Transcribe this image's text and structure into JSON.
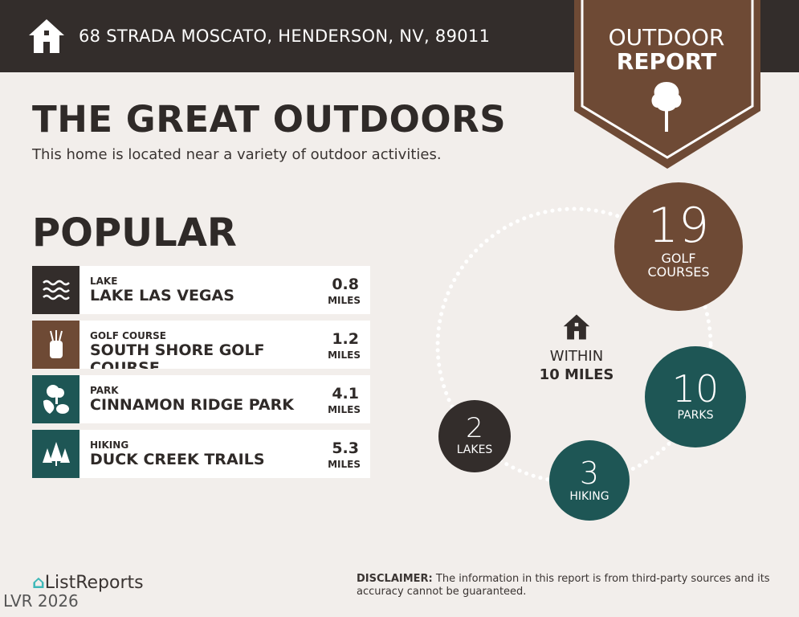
{
  "header": {
    "address": "68 STRADA MOSCATO, HENDERSON, NV, 89011",
    "icon": "home-icon"
  },
  "badge": {
    "line1": "OUTDOOR",
    "line2": "REPORT",
    "icon": "tree-icon"
  },
  "title": "THE GREAT OUTDOORS",
  "subtitle": "This home is located near a variety of outdoor activities.",
  "popular": {
    "heading": "POPULAR",
    "items": [
      {
        "category": "LAKE",
        "name": "LAKE LAS VEGAS",
        "distance": "0.8",
        "unit": "MILES",
        "icon": "waves-icon",
        "color": "#332d2b"
      },
      {
        "category": "GOLF COURSE",
        "name": "SOUTH SHORE GOLF COURSE",
        "distance": "1.2",
        "unit": "MILES",
        "icon": "golf-bag-icon",
        "color": "#6e4a35"
      },
      {
        "category": "PARK",
        "name": "CINNAMON RIDGE PARK",
        "distance": "4.1",
        "unit": "MILES",
        "icon": "park-icon",
        "color": "#1e5655"
      },
      {
        "category": "HIKING",
        "name": "DUCK CREEK TRAILS",
        "distance": "5.3",
        "unit": "MILES",
        "icon": "pine-trees-icon",
        "color": "#1e5655"
      }
    ]
  },
  "within": {
    "line1": "WITHIN",
    "line2": "10 MILES",
    "icon": "home-icon"
  },
  "counts": [
    {
      "count": "19",
      "label1": "GOLF",
      "label2": "COURSES",
      "color": "#6e4a35"
    },
    {
      "count": "10",
      "label1": "PARKS",
      "color": "#1e5655"
    },
    {
      "count": "3",
      "label1": "HIKING",
      "color": "#1e5655"
    },
    {
      "count": "2",
      "label1": "LAKES",
      "color": "#332d2b"
    }
  ],
  "footer": {
    "logo": "ListReports",
    "watermark": "LVR 2026",
    "disclaimer_label": "DISCLAIMER:",
    "disclaimer_text": " The information in this report is from third-party sources and its accuracy cannot be guaranteed."
  }
}
